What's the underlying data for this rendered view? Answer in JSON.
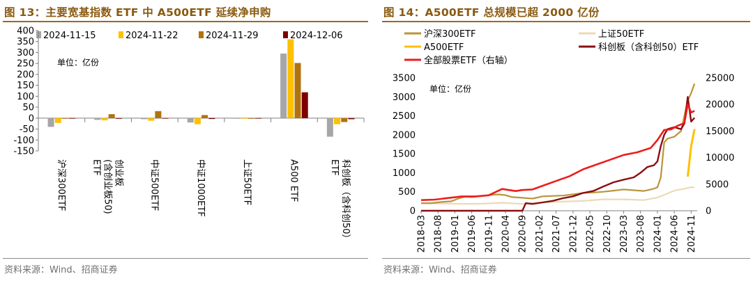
{
  "colors": {
    "title": "#8a5a10",
    "series_1115": "#a6a6a6",
    "series_1122": "#ffc000",
    "series_1129": "#b0730f",
    "series_1206": "#7f0000",
    "line_csi300": "#b8953a",
    "line_sse50": "#ecd9b4",
    "line_a500": "#ffc000",
    "line_star": "#8b0e10",
    "line_total": "#ee1c1c"
  },
  "left": {
    "title": "图 13：主要宽基指数 ETF 中 A500ETF 延续净申购",
    "source": "资料来源：Wind、招商证券",
    "unit": "单位：亿份"
  },
  "right": {
    "title": "图 14：A500ETF 总规模已超 2000 亿份",
    "source": "资料来源：Wind、招商证券",
    "unit": "单位：亿份"
  },
  "chart_data": [
    {
      "type": "bar",
      "categories": [
        "沪深300ETF",
        "创业板\n(含创业板50)\nETF",
        "中证500ETF",
        "中证1000ETF",
        "上证50ETF",
        "A500 ETF",
        "科创板（含科创50）\nETF"
      ],
      "series": [
        {
          "name": "2024-11-15",
          "values": [
            -40,
            -8,
            -5,
            -20,
            -3,
            295,
            -85
          ]
        },
        {
          "name": "2024-11-22",
          "values": [
            -22,
            -10,
            -12,
            -28,
            -3,
            360,
            -28
          ]
        },
        {
          "name": "2024-11-29",
          "values": [
            -3,
            18,
            32,
            14,
            -3,
            252,
            -18
          ]
        },
        {
          "name": "2024-12-06",
          "values": [
            -2,
            -3,
            -2,
            -4,
            -2,
            118,
            -5
          ]
        }
      ],
      "ylim": [
        -150,
        400
      ],
      "yticks": [
        "400",
        "350",
        "300",
        "250",
        "200",
        "150",
        "100",
        "50",
        "0",
        "-50",
        "-100",
        "-150"
      ],
      "grid": false,
      "legend": "top"
    },
    {
      "type": "line",
      "x_ticks": [
        "2018-03",
        "2018-08",
        "2019-01",
        "2019-06",
        "2019-11",
        "2020-04",
        "2020-09",
        "2021-02",
        "2021-07",
        "2021-12",
        "2022-05",
        "2022-10",
        "2023-03",
        "2023-08",
        "2024-01",
        "2024-06",
        "2024-11"
      ],
      "y_left_ticks": [
        "0",
        "500",
        "1000",
        "1500",
        "2000",
        "2500",
        "3000",
        "3500"
      ],
      "y_right_ticks": [
        "0",
        "5000",
        "10000",
        "15000",
        "20000",
        "25000"
      ],
      "ylim_left": [
        0,
        3500
      ],
      "ylim_right": [
        0,
        25000
      ],
      "legend": "top",
      "series": [
        {
          "name": "沪深300ETF",
          "axis": "left",
          "x": [
            "2018-03",
            "2018-06",
            "2018-09",
            "2018-12",
            "2019-02",
            "2019-04",
            "2019-06",
            "2019-09",
            "2019-12",
            "2020-02",
            "2020-04",
            "2020-06",
            "2020-09",
            "2020-12",
            "2021-03",
            "2021-06",
            "2021-09",
            "2021-12",
            "2022-03",
            "2022-06",
            "2022-09",
            "2022-12",
            "2023-03",
            "2023-06",
            "2023-09",
            "2023-12",
            "2024-01",
            "2024-02",
            "2024-03",
            "2024-04",
            "2024-06",
            "2024-08",
            "2024-09",
            "2024-10",
            "2024-11",
            "2024-12"
          ],
          "values": [
            200,
            200,
            230,
            250,
            320,
            370,
            360,
            390,
            420,
            430,
            410,
            360,
            340,
            320,
            380,
            390,
            400,
            430,
            470,
            480,
            500,
            530,
            560,
            540,
            520,
            580,
            620,
            870,
            1800,
            1900,
            1950,
            2100,
            2500,
            2900,
            3100,
            3350
          ]
        },
        {
          "name": "上证50ETF",
          "axis": "left",
          "x": [
            "2018-03",
            "2018-09",
            "2019-03",
            "2019-09",
            "2020-03",
            "2020-09",
            "2021-03",
            "2021-09",
            "2022-03",
            "2022-09",
            "2023-03",
            "2023-09",
            "2024-01",
            "2024-03",
            "2024-06",
            "2024-09",
            "2024-11",
            "2024-12"
          ],
          "values": [
            200,
            190,
            180,
            185,
            210,
            180,
            220,
            240,
            260,
            300,
            300,
            280,
            350,
            420,
            530,
            580,
            620,
            610
          ]
        },
        {
          "name": "A500ETF",
          "axis": "left",
          "x": [
            "2024-10",
            "2024-11",
            "2024-12"
          ],
          "values": [
            900,
            1700,
            2150
          ]
        },
        {
          "name": "科创板（含科创50）ETF",
          "axis": "left",
          "x": [
            "2018-03",
            "2020-09",
            "2020-10",
            "2020-12",
            "2021-03",
            "2021-06",
            "2021-09",
            "2021-12",
            "2022-03",
            "2022-06",
            "2022-09",
            "2022-12",
            "2023-03",
            "2023-06",
            "2023-08",
            "2023-10",
            "2023-12",
            "2024-01",
            "2024-02",
            "2024-03",
            "2024-04",
            "2024-06",
            "2024-08",
            "2024-09",
            "2024-10",
            "2024-11",
            "2024-12"
          ],
          "values": [
            0,
            0,
            200,
            180,
            220,
            260,
            330,
            380,
            470,
            520,
            640,
            750,
            820,
            880,
            1000,
            1150,
            1200,
            1300,
            1700,
            2000,
            2150,
            2200,
            2150,
            2300,
            3000,
            2350,
            2450
          ]
        },
        {
          "name": "全部股票ETF（右轴）",
          "axis": "right",
          "x": [
            "2018-03",
            "2018-07",
            "2018-11",
            "2019-03",
            "2019-07",
            "2019-11",
            "2020-03",
            "2020-07",
            "2020-09",
            "2020-12",
            "2021-03",
            "2021-07",
            "2021-11",
            "2022-03",
            "2022-07",
            "2022-11",
            "2023-03",
            "2023-07",
            "2023-11",
            "2024-01",
            "2024-03",
            "2024-05",
            "2024-07",
            "2024-09",
            "2024-10",
            "2024-11",
            "2024-12"
          ],
          "values": [
            2000,
            2100,
            2400,
            2700,
            2700,
            2900,
            4100,
            3700,
            3900,
            4000,
            4700,
            5600,
            6500,
            7800,
            8700,
            9600,
            10500,
            11000,
            11800,
            13300,
            15200,
            15300,
            16000,
            16500,
            20000,
            18500,
            18800
          ]
        }
      ]
    }
  ]
}
